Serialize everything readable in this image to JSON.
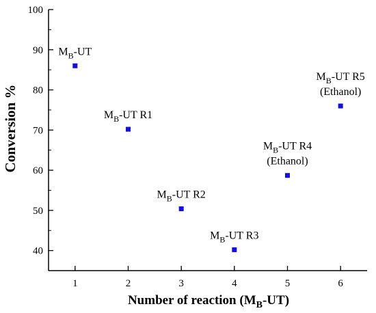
{
  "chart_data": {
    "type": "scatter",
    "title": "",
    "xlabel": {
      "main": "Number of reaction (M",
      "sub": "B",
      "tail": "-UT)"
    },
    "ylabel": "Conversion %",
    "xlim": [
      0.5,
      6.5
    ],
    "ylim": [
      35,
      100
    ],
    "xticks": [
      1,
      2,
      3,
      4,
      5,
      6
    ],
    "xtick_labels": [
      "1",
      "2",
      "3",
      "4",
      "5",
      "6"
    ],
    "yticks": [
      40,
      50,
      60,
      70,
      80,
      90,
      100
    ],
    "ytick_labels": [
      "40",
      "50",
      "60",
      "70",
      "80",
      "90",
      "100"
    ],
    "grid": false,
    "marker_color": "#1010e0",
    "points": [
      {
        "x": 1,
        "y": 86,
        "label": {
          "pre": "M",
          "sub": "B",
          "post": "-UT",
          "line2": ""
        }
      },
      {
        "x": 2,
        "y": 70.2,
        "label": {
          "pre": "M",
          "sub": "B",
          "post": "-UT R1",
          "line2": ""
        }
      },
      {
        "x": 3,
        "y": 50.4,
        "label": {
          "pre": "M",
          "sub": "B",
          "post": "-UT R2",
          "line2": ""
        }
      },
      {
        "x": 4,
        "y": 40.2,
        "label": {
          "pre": "M",
          "sub": "B",
          "post": "-UT R3",
          "line2": ""
        }
      },
      {
        "x": 5,
        "y": 58.7,
        "label": {
          "pre": "M",
          "sub": "B",
          "post": "-UT R4",
          "line2": "(Ethanol)"
        }
      },
      {
        "x": 6,
        "y": 76,
        "label": {
          "pre": "M",
          "sub": "B",
          "post": "-UT R5",
          "line2": "(Ethanol)"
        }
      }
    ]
  }
}
